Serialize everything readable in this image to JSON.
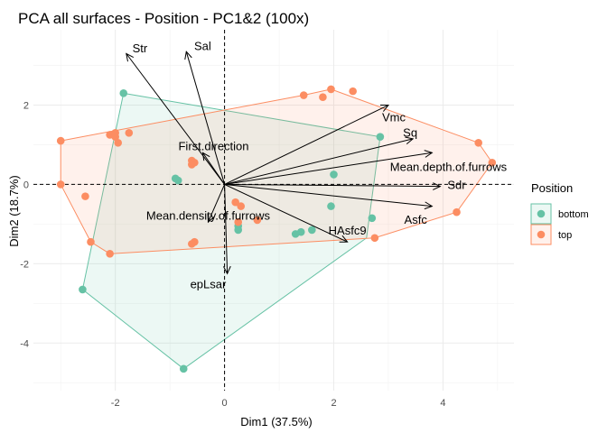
{
  "chart_data": {
    "type": "scatter",
    "title": "PCA all surfaces - Position - PC1&2 (100x)",
    "xlabel": "Dim1 (37.5%)",
    "ylabel": "Dim2 (18.7%)",
    "xlim": [
      -3.5,
      5.3
    ],
    "ylim": [
      -5.2,
      3.9
    ],
    "xticks": [
      -2,
      0,
      2,
      4
    ],
    "yticks": [
      -4,
      -2,
      0,
      2
    ],
    "grid": true,
    "legend": {
      "title": "Position",
      "placement": "right"
    },
    "series": [
      {
        "name": "bottom",
        "color": "#66C2A5",
        "points": [
          [
            -1.85,
            2.3
          ],
          [
            -0.9,
            0.15
          ],
          [
            -0.85,
            0.1
          ],
          [
            0.25,
            -1.05
          ],
          [
            0.25,
            -1.15
          ],
          [
            1.3,
            -1.25
          ],
          [
            1.4,
            -1.2
          ],
          [
            1.6,
            -1.15
          ],
          [
            1.95,
            -0.55
          ],
          [
            2.0,
            0.25
          ],
          [
            2.7,
            -0.85
          ],
          [
            2.85,
            1.2
          ],
          [
            -2.6,
            -2.65
          ],
          [
            -0.75,
            -4.65
          ]
        ],
        "hull": [
          [
            -1.85,
            2.3
          ],
          [
            2.85,
            1.2
          ],
          [
            2.6,
            -1.35
          ],
          [
            -0.75,
            -4.65
          ],
          [
            -2.6,
            -2.65
          ]
        ]
      },
      {
        "name": "top",
        "color": "#FC8D62",
        "points": [
          [
            -3.0,
            1.1
          ],
          [
            -3.0,
            0.0
          ],
          [
            -2.55,
            -0.3
          ],
          [
            -2.45,
            -1.45
          ],
          [
            -2.1,
            -1.75
          ],
          [
            -2.1,
            1.25
          ],
          [
            -2.0,
            1.3
          ],
          [
            -2.0,
            1.2
          ],
          [
            -1.95,
            1.05
          ],
          [
            -1.75,
            1.3
          ],
          [
            -0.6,
            0.6
          ],
          [
            -0.55,
            0.55
          ],
          [
            -0.6,
            0.5
          ],
          [
            -0.55,
            -1.45
          ],
          [
            -0.6,
            -1.5
          ],
          [
            0.2,
            -0.45
          ],
          [
            0.3,
            -0.55
          ],
          [
            0.6,
            -0.9
          ],
          [
            0.25,
            -0.95
          ],
          [
            1.45,
            2.25
          ],
          [
            1.8,
            2.2
          ],
          [
            1.95,
            2.4
          ],
          [
            2.35,
            2.35
          ],
          [
            2.75,
            -1.35
          ],
          [
            4.25,
            -0.7
          ],
          [
            4.65,
            1.05
          ],
          [
            4.9,
            0.55
          ]
        ],
        "hull": [
          [
            -3.0,
            1.1
          ],
          [
            1.45,
            2.25
          ],
          [
            1.95,
            2.4
          ],
          [
            4.65,
            1.05
          ],
          [
            4.9,
            0.55
          ],
          [
            4.25,
            -0.7
          ],
          [
            2.75,
            -1.35
          ],
          [
            -2.1,
            -1.75
          ],
          [
            -2.45,
            -1.45
          ],
          [
            -3.0,
            0.0
          ]
        ]
      }
    ],
    "arrows": [
      {
        "name": "Str",
        "end": [
          -1.8,
          3.3
        ],
        "label_at": [
          -1.55,
          3.45
        ]
      },
      {
        "name": "Sal",
        "end": [
          -0.7,
          3.35
        ],
        "label_at": [
          -0.4,
          3.5
        ]
      },
      {
        "name": "First.direction",
        "end": [
          -0.4,
          0.8
        ],
        "label_at": [
          -0.2,
          0.98
        ]
      },
      {
        "name": "Vmc",
        "end": [
          3.0,
          2.0
        ],
        "label_at": [
          3.1,
          1.7
        ]
      },
      {
        "name": "Sq",
        "end": [
          3.45,
          1.15
        ],
        "label_at": [
          3.4,
          1.32
        ]
      },
      {
        "name": "Mean.depth.of.furrows",
        "end": [
          3.8,
          0.8
        ],
        "label_at": [
          4.1,
          0.45
        ]
      },
      {
        "name": "Sdr",
        "end": [
          3.95,
          -0.05
        ],
        "label_at": [
          4.25,
          0.0
        ]
      },
      {
        "name": "Asfc",
        "end": [
          3.8,
          -0.55
        ],
        "label_at": [
          3.5,
          -0.88
        ]
      },
      {
        "name": "HAsfc9",
        "end": [
          2.25,
          -1.45
        ],
        "label_at": [
          2.25,
          -1.15
        ]
      },
      {
        "name": "Mean.density.of.furrows",
        "end": [
          -0.3,
          -0.95
        ],
        "label_at": [
          -0.3,
          -0.78
        ]
      },
      {
        "name": "epLsar",
        "end": [
          0.05,
          -2.25
        ],
        "label_at": [
          -0.3,
          -2.5
        ]
      }
    ]
  }
}
